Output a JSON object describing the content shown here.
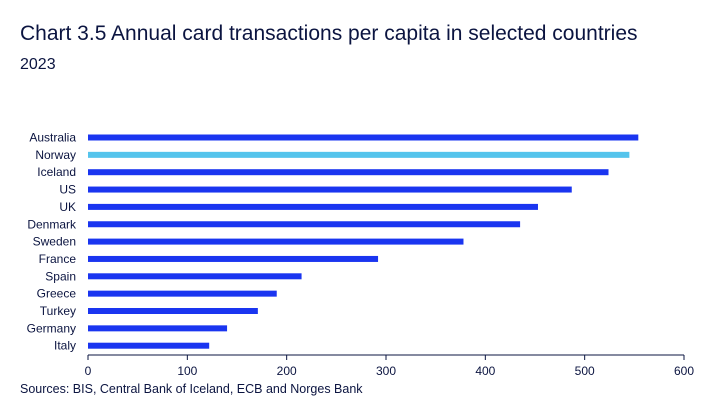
{
  "title": "Chart 3.5 Annual card transactions per capita in selected countries",
  "subtitle": "2023",
  "source": "Sources: BIS, Central Bank of Iceland, ECB and Norges Bank",
  "colors": {
    "bar": "#1a35f0",
    "highlight": "#55c4ec",
    "axis": "#0b1440"
  },
  "chart_data": {
    "type": "bar",
    "orientation": "horizontal",
    "categories": [
      "Australia",
      "Norway",
      "Iceland",
      "US",
      "UK",
      "Denmark",
      "Sweden",
      "France",
      "Spain",
      "Greece",
      "Turkey",
      "Germany",
      "Italy"
    ],
    "values": [
      554,
      545,
      524,
      487,
      453,
      435,
      378,
      292,
      215,
      190,
      171,
      140,
      122
    ],
    "highlight": "Norway",
    "xlim": [
      0,
      600
    ],
    "xticks": [
      0,
      100,
      200,
      300,
      400,
      500,
      600
    ],
    "grid": false,
    "legend": "none"
  }
}
